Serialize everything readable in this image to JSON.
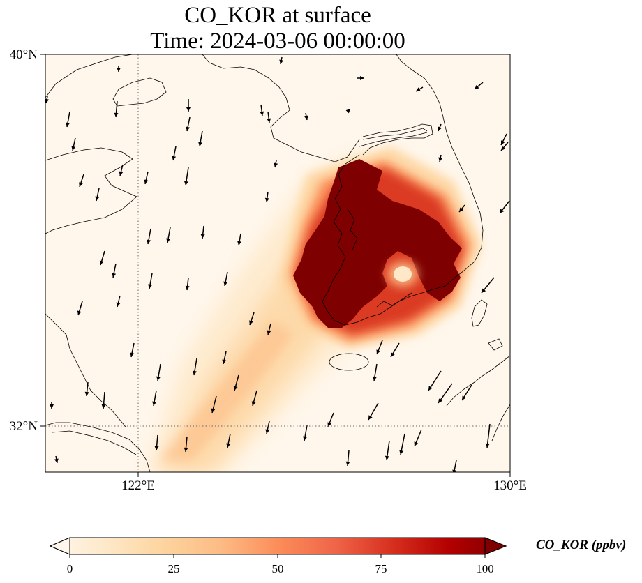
{
  "title": {
    "line1": "CO_KOR at surface",
    "line2": "Time: 2024-03-06 00:00:00"
  },
  "axes": {
    "lat_labels": [
      "40°N",
      "32°N"
    ],
    "lon_labels": [
      "122°E",
      "130°E"
    ],
    "lon_range": [
      120,
      130
    ],
    "lat_range": [
      31,
      40
    ],
    "gridlines": {
      "lon": 122,
      "lat": 32,
      "style": "dotted"
    }
  },
  "colorbar": {
    "label": "CO_KOR (ppbv)",
    "ticks": [
      "0",
      "25",
      "50",
      "75",
      "100"
    ],
    "range": [
      0,
      100
    ],
    "extend": "both",
    "colormap": "OrRd",
    "colors": [
      "#fff7ec",
      "#fee8c8",
      "#fdd49e",
      "#fdbb84",
      "#fc8d59",
      "#ef6548",
      "#d7301f",
      "#b30000",
      "#7f0000"
    ]
  },
  "field": {
    "variable": "CO_KOR",
    "level": "surface",
    "max_region": "Korean peninsula (western half)",
    "plume_direction": "southwest"
  },
  "wind_vectors": {
    "present": true,
    "color": "#000000"
  }
}
